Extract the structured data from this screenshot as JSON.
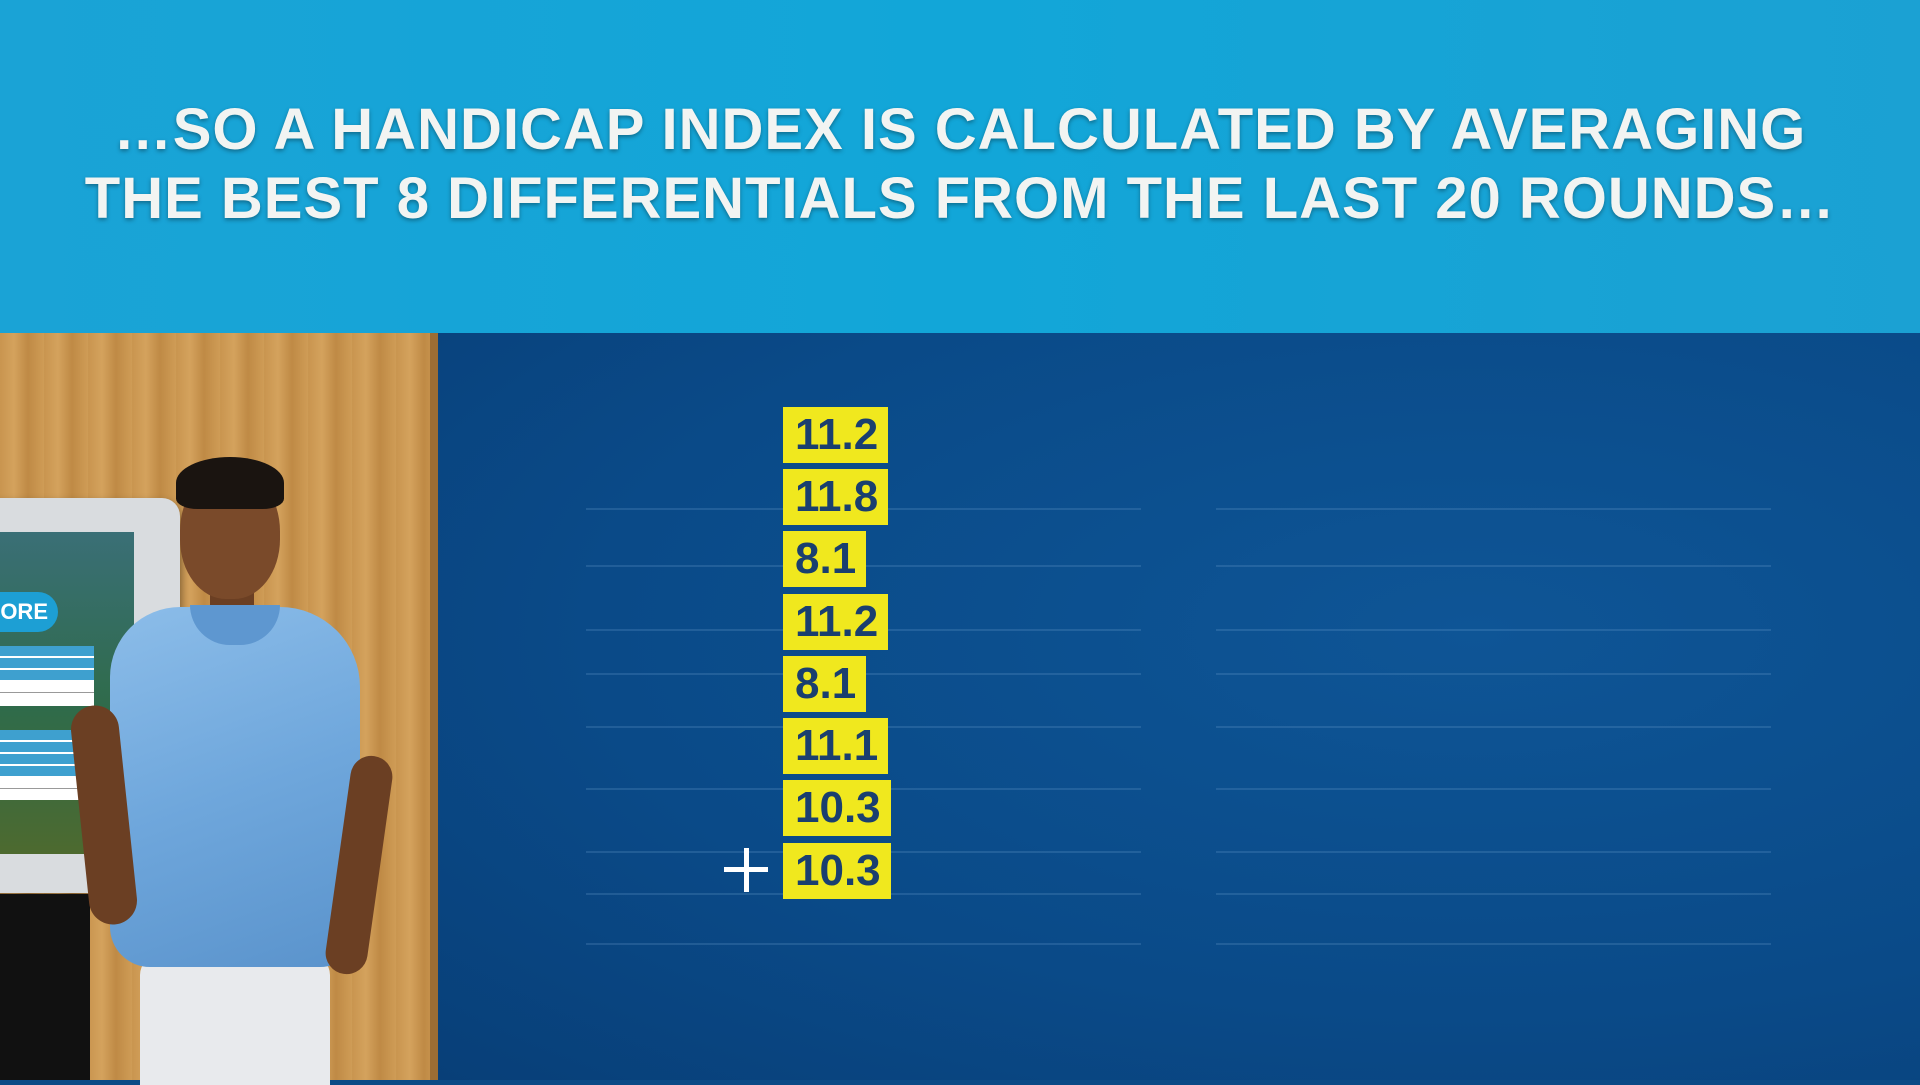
{
  "banner": {
    "line1": "…SO A HANDICAP INDEX IS CALCULATED BY AVERAGING",
    "line2": "THE BEST 8 DIFFERENTIALS FROM THE LAST 20 ROUNDS…"
  },
  "kiosk": {
    "button_label": "ORE"
  },
  "differentials": [
    "11.2",
    "11.8",
    "8.1",
    "11.2",
    "8.1",
    "11.1",
    "10.3",
    "10.3"
  ],
  "colors": {
    "banner": "#12a6d8",
    "board": "#0a4a88",
    "highlight": "#f0e81e",
    "number_text": "#1a3f6f"
  }
}
